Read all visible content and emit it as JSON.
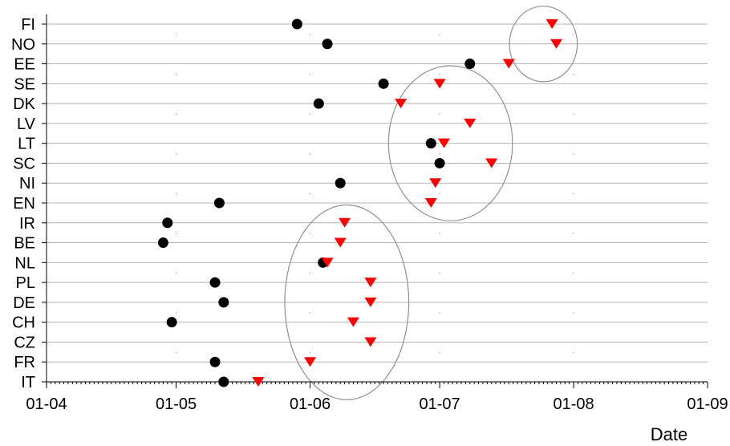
{
  "chart_data": {
    "type": "scatter",
    "title": "",
    "xlabel": "Date",
    "ylabel": "",
    "x_axis_kind": "date (day-month, year not shown)",
    "xlim": [
      "01-04",
      "01-09"
    ],
    "x_ticks": [
      "01-04",
      "01-05",
      "01-06",
      "01-07",
      "01-08",
      "01-09"
    ],
    "categories": [
      "FI",
      "NO",
      "EE",
      "SE",
      "DK",
      "LV",
      "LT",
      "SC",
      "NI",
      "EN",
      "IR",
      "BE",
      "NL",
      "PL",
      "DE",
      "CH",
      "CZ",
      "FR",
      "IT"
    ],
    "grid": "horizontal lines at each category",
    "legend": "none",
    "series": [
      {
        "marker": "circle",
        "color": "#000000",
        "points": [
          {
            "cat": "FI",
            "x": "29-05"
          },
          {
            "cat": "NO",
            "x": "05-06"
          },
          {
            "cat": "EE",
            "x": "08-07"
          },
          {
            "cat": "SE",
            "x": "18-06"
          },
          {
            "cat": "DK",
            "x": "03-06"
          },
          {
            "cat": "LT",
            "x": "29-06"
          },
          {
            "cat": "SC",
            "x": "01-07"
          },
          {
            "cat": "NI",
            "x": "08-06"
          },
          {
            "cat": "EN",
            "x": "11-05"
          },
          {
            "cat": "IR",
            "x": "29-04"
          },
          {
            "cat": "BE",
            "x": "28-04"
          },
          {
            "cat": "NL",
            "x": "04-06"
          },
          {
            "cat": "PL",
            "x": "10-05"
          },
          {
            "cat": "DE",
            "x": "12-05"
          },
          {
            "cat": "CH",
            "x": "30-04"
          },
          {
            "cat": "FR",
            "x": "10-05"
          },
          {
            "cat": "IT",
            "x": "12-05"
          }
        ]
      },
      {
        "marker": "triangle-down",
        "color": "#ff0000",
        "points": [
          {
            "cat": "FI",
            "x": "27-07"
          },
          {
            "cat": "NO",
            "x": "28-07"
          },
          {
            "cat": "EE",
            "x": "17-07"
          },
          {
            "cat": "SE",
            "x": "01-07"
          },
          {
            "cat": "DK",
            "x": "22-06"
          },
          {
            "cat": "LV",
            "x": "08-07"
          },
          {
            "cat": "LT",
            "x": "02-07"
          },
          {
            "cat": "SC",
            "x": "13-07"
          },
          {
            "cat": "NI",
            "x": "30-06"
          },
          {
            "cat": "EN",
            "x": "29-06"
          },
          {
            "cat": "IR",
            "x": "09-06"
          },
          {
            "cat": "BE",
            "x": "08-06"
          },
          {
            "cat": "NL",
            "x": "05-06"
          },
          {
            "cat": "PL",
            "x": "15-06"
          },
          {
            "cat": "DE",
            "x": "15-06"
          },
          {
            "cat": "CH",
            "x": "11-06"
          },
          {
            "cat": "CZ",
            "x": "15-06"
          },
          {
            "cat": "FR",
            "x": "01-06"
          },
          {
            "cat": "IT",
            "x": "20-05"
          }
        ]
      }
    ],
    "annotations": [
      {
        "shape": "ellipse",
        "from": "19-07",
        "to": "31-07",
        "cats": [
          "FI",
          "EE"
        ]
      },
      {
        "shape": "ellipse",
        "from": "21-06",
        "to": "16-07",
        "cats": [
          "SE",
          "EN"
        ]
      },
      {
        "shape": "ellipse",
        "from": "28-05",
        "to": "22-06",
        "cats": [
          "IR",
          "IT"
        ]
      }
    ]
  }
}
